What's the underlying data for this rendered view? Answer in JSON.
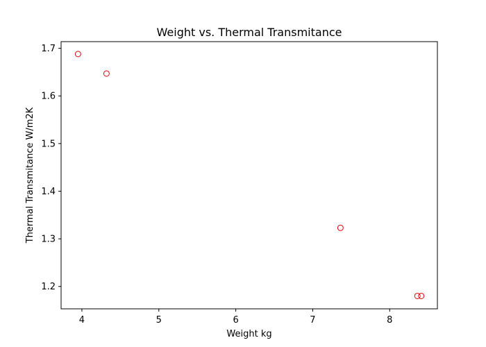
{
  "chart_data": {
    "type": "scatter",
    "title": "Weight vs. Thermal Transmitance",
    "xlabel": "Weight kg",
    "ylabel": "Thermal Transmitance W/m2K",
    "xlim": [
      3.73,
      8.62
    ],
    "ylim": [
      1.153,
      1.714
    ],
    "x_ticks": [
      4,
      5,
      6,
      7,
      8
    ],
    "y_ticks": [
      1.2,
      1.3,
      1.4,
      1.5,
      1.6,
      1.7
    ],
    "x_tick_labels": [
      "4",
      "5",
      "6",
      "7",
      "8"
    ],
    "y_tick_labels": [
      "1.2",
      "1.3",
      "1.4",
      "1.5",
      "1.6",
      "1.7"
    ],
    "grid": false,
    "marker_color": "#e8000b",
    "marker_style": "hollow-circle",
    "points": [
      {
        "x": 3.95,
        "y": 1.688
      },
      {
        "x": 4.32,
        "y": 1.647
      },
      {
        "x": 7.36,
        "y": 1.323
      },
      {
        "x": 8.36,
        "y": 1.18
      },
      {
        "x": 8.41,
        "y": 1.18
      }
    ]
  }
}
